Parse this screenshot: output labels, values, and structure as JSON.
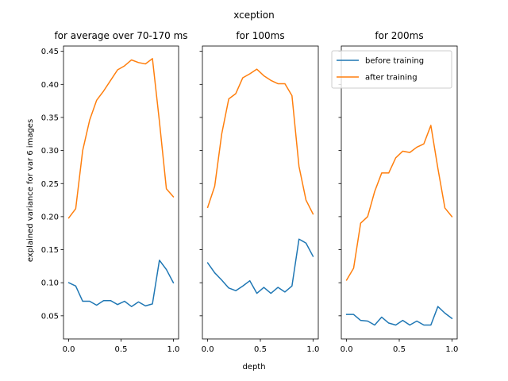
{
  "chart_data": {
    "type": "line",
    "suptitle": "xception",
    "xlabel": "depth",
    "ylabel": "explained variance for var 6 images",
    "ylim": [
      0.015,
      0.458
    ],
    "yticks": [
      0.05,
      0.1,
      0.15,
      0.2,
      0.25,
      0.3,
      0.35,
      0.4,
      0.45
    ],
    "xlim": [
      -0.05,
      1.05
    ],
    "xticks": [
      0.0,
      0.5,
      1.0
    ],
    "legend": {
      "placement": "top-right",
      "panel": 2,
      "entries": [
        "before training",
        "after training"
      ]
    },
    "colors": {
      "before training": "#1f77b4",
      "after training": "#ff7f0e"
    },
    "panels": [
      {
        "title": "for average over 70-170 ms",
        "series": [
          {
            "name": "before training",
            "x": [
              0.0,
              0.0667,
              0.1333,
              0.2,
              0.2667,
              0.3333,
              0.4,
              0.4667,
              0.5333,
              0.6,
              0.6667,
              0.7333,
              0.8,
              0.8667,
              0.9333,
              1.0
            ],
            "y": [
              0.1,
              0.095,
              0.072,
              0.072,
              0.066,
              0.073,
              0.073,
              0.067,
              0.072,
              0.064,
              0.071,
              0.065,
              0.068,
              0.134,
              0.12,
              0.1
            ]
          },
          {
            "name": "after training",
            "x": [
              0.0,
              0.0667,
              0.1333,
              0.2,
              0.2667,
              0.3333,
              0.4,
              0.4667,
              0.5333,
              0.6,
              0.6667,
              0.7333,
              0.8,
              0.8667,
              0.9333,
              1.0
            ],
            "y": [
              0.198,
              0.212,
              0.3,
              0.346,
              0.376,
              0.39,
              0.406,
              0.422,
              0.428,
              0.437,
              0.433,
              0.431,
              0.439,
              0.344,
              0.242,
              0.23
            ]
          }
        ]
      },
      {
        "title": "for 100ms",
        "series": [
          {
            "name": "before training",
            "x": [
              0.0,
              0.0667,
              0.1333,
              0.2,
              0.2667,
              0.3333,
              0.4,
              0.4667,
              0.5333,
              0.6,
              0.6667,
              0.7333,
              0.8,
              0.8667,
              0.9333,
              1.0
            ],
            "y": [
              0.13,
              0.115,
              0.104,
              0.092,
              0.088,
              0.095,
              0.103,
              0.084,
              0.093,
              0.084,
              0.093,
              0.086,
              0.095,
              0.166,
              0.16,
              0.14
            ]
          },
          {
            "name": "after training",
            "x": [
              0.0,
              0.0667,
              0.1333,
              0.2,
              0.2667,
              0.3333,
              0.4,
              0.4667,
              0.5333,
              0.6,
              0.6667,
              0.7333,
              0.8,
              0.8667,
              0.9333,
              1.0
            ],
            "y": [
              0.214,
              0.246,
              0.325,
              0.378,
              0.386,
              0.41,
              0.416,
              0.423,
              0.413,
              0.406,
              0.401,
              0.401,
              0.383,
              0.276,
              0.225,
              0.204
            ]
          }
        ]
      },
      {
        "title": "for 200ms",
        "series": [
          {
            "name": "before training",
            "x": [
              0.0,
              0.0667,
              0.1333,
              0.2,
              0.2667,
              0.3333,
              0.4,
              0.4667,
              0.5333,
              0.6,
              0.6667,
              0.7333,
              0.8,
              0.8667,
              0.9333,
              1.0
            ],
            "y": [
              0.052,
              0.052,
              0.043,
              0.042,
              0.036,
              0.048,
              0.039,
              0.036,
              0.043,
              0.036,
              0.042,
              0.036,
              0.036,
              0.064,
              0.054,
              0.046
            ]
          },
          {
            "name": "after training",
            "x": [
              0.0,
              0.0667,
              0.1333,
              0.2,
              0.2667,
              0.3333,
              0.4,
              0.4667,
              0.5333,
              0.6,
              0.6667,
              0.7333,
              0.8,
              0.8667,
              0.9333,
              1.0
            ],
            "y": [
              0.104,
              0.122,
              0.19,
              0.2,
              0.238,
              0.266,
              0.266,
              0.289,
              0.299,
              0.297,
              0.305,
              0.31,
              0.338,
              0.273,
              0.213,
              0.2
            ]
          }
        ]
      }
    ]
  }
}
